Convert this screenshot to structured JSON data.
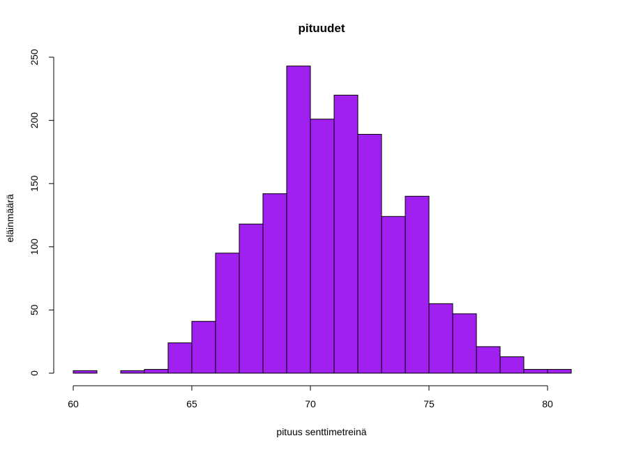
{
  "chart_data": {
    "type": "bar",
    "title": "pituudet",
    "xlabel": "pituus senttimetreinä",
    "ylabel": "eläinmäärä",
    "bar_color": "#a020f0",
    "edge_color": "#000000",
    "bin_width": 1,
    "xlim": [
      60,
      81
    ],
    "ylim": [
      0,
      250
    ],
    "x_ticks": [
      60,
      65,
      70,
      75,
      80
    ],
    "y_ticks": [
      0,
      50,
      100,
      150,
      200,
      250
    ],
    "bins": [
      {
        "start": 60,
        "end": 61,
        "count": 2
      },
      {
        "start": 61,
        "end": 62,
        "count": 0
      },
      {
        "start": 62,
        "end": 63,
        "count": 2
      },
      {
        "start": 63,
        "end": 64,
        "count": 3
      },
      {
        "start": 64,
        "end": 65,
        "count": 24
      },
      {
        "start": 65,
        "end": 66,
        "count": 41
      },
      {
        "start": 66,
        "end": 67,
        "count": 95
      },
      {
        "start": 67,
        "end": 68,
        "count": 118
      },
      {
        "start": 68,
        "end": 69,
        "count": 142
      },
      {
        "start": 69,
        "end": 70,
        "count": 243
      },
      {
        "start": 70,
        "end": 71,
        "count": 201
      },
      {
        "start": 71,
        "end": 72,
        "count": 220
      },
      {
        "start": 72,
        "end": 73,
        "count": 189
      },
      {
        "start": 73,
        "end": 74,
        "count": 124
      },
      {
        "start": 74,
        "end": 75,
        "count": 140
      },
      {
        "start": 75,
        "end": 76,
        "count": 55
      },
      {
        "start": 76,
        "end": 77,
        "count": 47
      },
      {
        "start": 77,
        "end": 78,
        "count": 21
      },
      {
        "start": 78,
        "end": 79,
        "count": 13
      },
      {
        "start": 79,
        "end": 80,
        "count": 3
      },
      {
        "start": 80,
        "end": 81,
        "count": 3
      }
    ]
  }
}
